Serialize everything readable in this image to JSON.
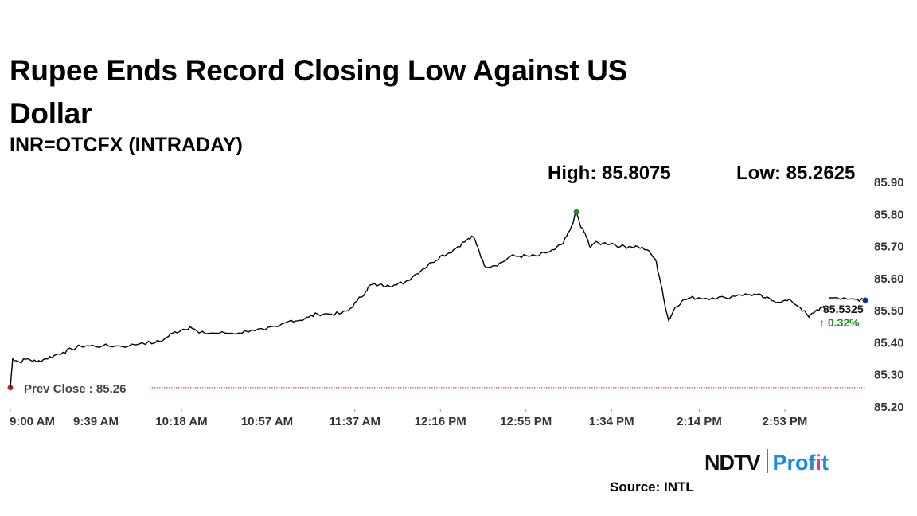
{
  "title": "Rupee Ends Record Closing Low Against US Dollar",
  "subtitle": "INR=OTCFX (INTRADAY)",
  "high_text": "High: 85.8075",
  "low_text": "Low: 85.2625",
  "source_text": "Source: INTL",
  "logo": {
    "part1": "NDTV",
    "part2a": "Prof",
    "part2b": "i",
    "part2c": "t"
  },
  "colors": {
    "line": "#000000",
    "prev_close": "#cc2222",
    "high_marker": "#1a8a1a",
    "last_marker": "#1a2aa0",
    "change": "#1a8a1a"
  },
  "chart_data": {
    "type": "line",
    "series_name": "INR=OTCFX",
    "ylim": [
      85.2,
      85.9
    ],
    "y_ticks": [
      "85.90",
      "85.80",
      "85.70",
      "85.60",
      "85.50",
      "85.40",
      "85.30",
      "85.20"
    ],
    "y_tick_values": [
      85.9,
      85.8,
      85.7,
      85.6,
      85.5,
      85.4,
      85.3,
      85.2
    ],
    "x_ticks": [
      "9:00 AM",
      "9:39 AM",
      "10:18 AM",
      "10:57 AM",
      "11:37 AM",
      "12:16 PM",
      "12:55 PM",
      "1:34 PM",
      "2:14 PM",
      "2:53 PM"
    ],
    "x_tick_minutes": [
      0,
      39,
      78,
      117,
      157,
      196,
      235,
      274,
      314,
      353
    ],
    "x_range_minutes": [
      0,
      390
    ],
    "prev_close": 85.26,
    "prev_close_label": "Prev Close : 85.26",
    "high": {
      "minute": 258,
      "value": 85.8075
    },
    "last": {
      "minute": 390,
      "value": 85.5325,
      "label": "85.5325",
      "change_label": "↑ 0.32%"
    },
    "points": [
      [
        0,
        85.26
      ],
      [
        1,
        85.35
      ],
      [
        4,
        85.34
      ],
      [
        8,
        85.35
      ],
      [
        12,
        85.34
      ],
      [
        16,
        85.35
      ],
      [
        20,
        85.36
      ],
      [
        24,
        85.37
      ],
      [
        28,
        85.38
      ],
      [
        32,
        85.39
      ],
      [
        36,
        85.39
      ],
      [
        42,
        85.39
      ],
      [
        48,
        85.39
      ],
      [
        54,
        85.39
      ],
      [
        60,
        85.4
      ],
      [
        66,
        85.4
      ],
      [
        70,
        85.41
      ],
      [
        74,
        85.43
      ],
      [
        78,
        85.44
      ],
      [
        82,
        85.45
      ],
      [
        86,
        85.43
      ],
      [
        92,
        85.43
      ],
      [
        98,
        85.43
      ],
      [
        104,
        85.43
      ],
      [
        110,
        85.44
      ],
      [
        116,
        85.44
      ],
      [
        122,
        85.45
      ],
      [
        128,
        85.47
      ],
      [
        132,
        85.47
      ],
      [
        136,
        85.48
      ],
      [
        140,
        85.49
      ],
      [
        145,
        85.49
      ],
      [
        150,
        85.49
      ],
      [
        154,
        85.5
      ],
      [
        158,
        85.53
      ],
      [
        162,
        85.56
      ],
      [
        164,
        85.58
      ],
      [
        168,
        85.58
      ],
      [
        172,
        85.58
      ],
      [
        176,
        85.58
      ],
      [
        180,
        85.59
      ],
      [
        184,
        85.61
      ],
      [
        188,
        85.63
      ],
      [
        192,
        85.65
      ],
      [
        196,
        85.67
      ],
      [
        200,
        85.68
      ],
      [
        204,
        85.7
      ],
      [
        208,
        85.72
      ],
      [
        211,
        85.73
      ],
      [
        213,
        85.7
      ],
      [
        216,
        85.64
      ],
      [
        220,
        85.64
      ],
      [
        224,
        85.65
      ],
      [
        228,
        85.67
      ],
      [
        232,
        85.67
      ],
      [
        236,
        85.67
      ],
      [
        240,
        85.67
      ],
      [
        244,
        85.68
      ],
      [
        248,
        85.69
      ],
      [
        252,
        85.71
      ],
      [
        255,
        85.75
      ],
      [
        258,
        85.8075
      ],
      [
        260,
        85.76
      ],
      [
        262,
        85.74
      ],
      [
        264,
        85.7
      ],
      [
        266,
        85.71
      ],
      [
        270,
        85.71
      ],
      [
        274,
        85.71
      ],
      [
        278,
        85.7
      ],
      [
        282,
        85.7
      ],
      [
        286,
        85.7
      ],
      [
        290,
        85.69
      ],
      [
        294,
        85.66
      ],
      [
        296,
        85.6
      ],
      [
        298,
        85.53
      ],
      [
        300,
        85.47
      ],
      [
        303,
        85.51
      ],
      [
        306,
        85.53
      ],
      [
        310,
        85.54
      ],
      [
        314,
        85.54
      ],
      [
        320,
        85.54
      ],
      [
        326,
        85.54
      ],
      [
        332,
        85.55
      ],
      [
        336,
        85.55
      ],
      [
        340,
        85.55
      ],
      [
        344,
        85.54
      ],
      [
        348,
        85.53
      ],
      [
        352,
        85.53
      ],
      [
        356,
        85.53
      ],
      [
        360,
        85.51
      ],
      [
        364,
        85.48
      ],
      [
        367,
        85.5
      ],
      [
        370,
        85.51
      ],
      [
        372,
        85.5
      ]
    ],
    "tail_points": [
      [
        373,
        85.54
      ],
      [
        380,
        85.54
      ],
      [
        386,
        85.535
      ],
      [
        390,
        85.5325
      ]
    ]
  }
}
